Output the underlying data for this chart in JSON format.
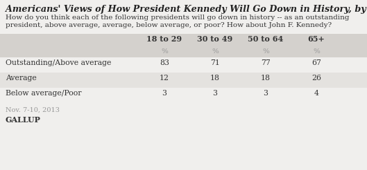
{
  "title": "Americans' Views of How President Kennedy Will Go Down in History, by Age",
  "subtitle_line1": "How do you think each of the following presidents will go down in history -- as an outstanding",
  "subtitle_line2": "president, above average, average, below average, or poor? How about John F. Kennedy?",
  "col_headers": [
    "18 to 29",
    "30 to 49",
    "50 to 64",
    "65+"
  ],
  "pct_label": "%",
  "rows": [
    {
      "label": "Outstanding/Above average",
      "values": [
        83,
        71,
        77,
        67
      ]
    },
    {
      "label": "Average",
      "values": [
        12,
        18,
        18,
        26
      ]
    },
    {
      "label": "Below average/Poor",
      "values": [
        3,
        3,
        3,
        4
      ]
    }
  ],
  "footnote": "Nov. 7-10, 2013",
  "source": "GALLUP",
  "bg_color": "#f0efed",
  "header_bg": "#d4d1cd",
  "row_bg_odd": "#f0efed",
  "row_bg_even": "#e4e2df",
  "title_color": "#222222",
  "subtitle_color": "#333333",
  "text_color": "#333333",
  "faint_text_color": "#999999",
  "figsize": [
    5.29,
    2.46
  ],
  "dpi": 100
}
